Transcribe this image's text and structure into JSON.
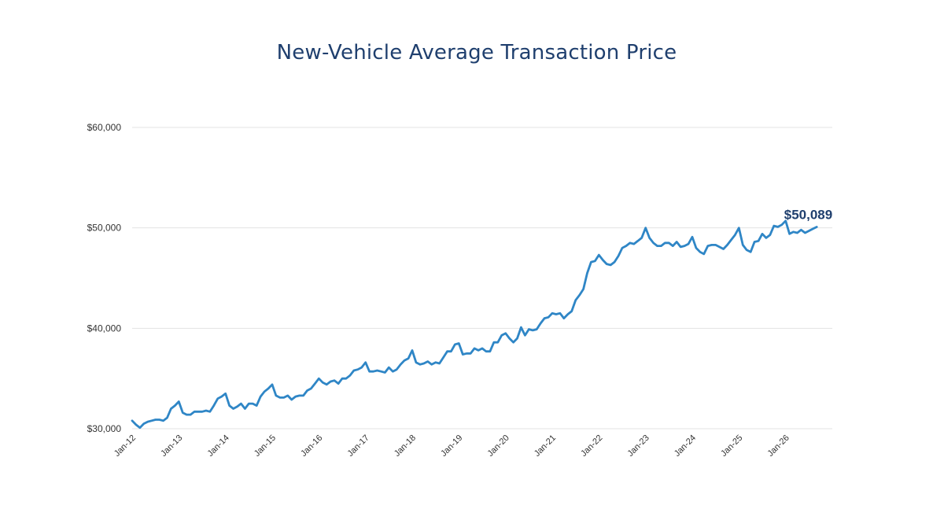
{
  "colors": {
    "title": "#1f3f6e",
    "line": "#2f86c6",
    "end_label": "#1f3f6e"
  },
  "chart_data": {
    "type": "line",
    "title": "New-Vehicle Average Transaction Price",
    "xlabel": "",
    "ylabel": "",
    "ylim": [
      30000,
      60000
    ],
    "yticks": [
      30000,
      40000,
      50000,
      60000
    ],
    "ytick_labels": [
      "$30,000",
      "$40,000",
      "$50,000",
      "$60,000"
    ],
    "xtick_labels": [
      "Jan-12",
      "Jan-13",
      "Jan-14",
      "Jan-15",
      "Jan-16",
      "Jan-17",
      "Jan-18",
      "Jan-19",
      "Jan-20",
      "Jan-21",
      "Jan-22",
      "Jan-23",
      "Jan-24",
      "Jan-25",
      "Jan-26"
    ],
    "grid": true,
    "legend": "none",
    "end_label": "$50,089",
    "series": [
      {
        "start": "Jan-12",
        "values": [
          30800,
          30400,
          30100,
          30500,
          30700,
          30800,
          30900,
          30900,
          30800,
          31100,
          32000,
          32300,
          32700,
          31600,
          31400,
          31400,
          31700,
          31700,
          31700,
          31800,
          31700,
          32300,
          33000,
          33200,
          33500,
          32300,
          32000,
          32200,
          32500,
          32000,
          32500,
          32500,
          32300,
          33200,
          33700,
          34000,
          34400,
          33300,
          33100,
          33100,
          33300,
          32900,
          33200,
          33300,
          33300,
          33800,
          34000,
          34500,
          35000,
          34600,
          34400,
          34700,
          34800,
          34500,
          35000,
          35000,
          35300,
          35800,
          35900,
          36100,
          36600,
          35700,
          35700,
          35800,
          35700,
          35600,
          36100,
          35700,
          35900,
          36400,
          36800,
          37000,
          37800,
          36600,
          36400,
          36500,
          36700,
          36400,
          36600,
          36500,
          37100,
          37700,
          37700,
          38400,
          38500,
          37400,
          37500,
          37500,
          38000,
          37800,
          38000,
          37700,
          37700,
          38600,
          38600,
          39300,
          39500,
          39000,
          38600,
          39000,
          40100,
          39300,
          39900,
          39800,
          39900,
          40500,
          41000,
          41100,
          41500,
          41400,
          41500,
          41000,
          41400,
          41700,
          42800,
          43300,
          43900,
          45500,
          46600,
          46700,
          47300,
          46800,
          46400,
          46300,
          46600,
          47200,
          48000,
          48200,
          48500,
          48400,
          48700,
          49000,
          50000,
          49000,
          48500,
          48200,
          48200,
          48500,
          48500,
          48200,
          48600,
          48100,
          48200,
          48400,
          49100,
          48000,
          47600,
          47400,
          48200,
          48300,
          48300,
          48100,
          47900,
          48300,
          48800,
          49300,
          50000,
          48300,
          47800,
          47600,
          48600,
          48700,
          49400,
          49000,
          49300,
          50200,
          50100,
          50300,
          50700,
          49400,
          49600,
          49500,
          49800,
          49500,
          49700,
          49900,
          50089
        ]
      }
    ]
  }
}
